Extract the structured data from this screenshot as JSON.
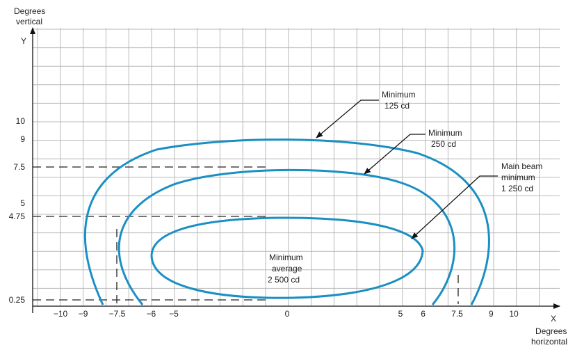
{
  "axes": {
    "y_title_line1": "Degrees",
    "y_title_line2": "vertical",
    "y_letter": "Y",
    "x_letter": "X",
    "x_title_line1": "Degrees",
    "x_title_line2": "horizontal",
    "x_ticks": [
      "−10",
      "−9",
      "−7.5",
      "−6",
      "−5",
      "0",
      "5",
      "6",
      "7.5",
      "9",
      "10"
    ],
    "x_tick_values": [
      -10,
      -9,
      -7.5,
      -6,
      -5,
      0,
      5,
      6,
      7.5,
      9,
      10
    ],
    "y_ticks": [
      "10",
      "9",
      "7.5",
      "5",
      "4.75",
      "0.25"
    ],
    "y_tick_values": [
      10,
      9,
      7.5,
      5,
      4.75,
      0.25
    ]
  },
  "curves": [
    {
      "name": "minimum-125-cd",
      "x_range": [
        -9,
        9
      ],
      "y_top": 9,
      "y_bottom": 0.25,
      "color": "#1a8fc4"
    },
    {
      "name": "minimum-250-cd",
      "x_range": [
        -7.5,
        7.5
      ],
      "y_top": 7.5,
      "y_bottom": 0.25,
      "color": "#1a8fc4"
    },
    {
      "name": "main-beam-1250-cd",
      "x_range": [
        -6,
        6
      ],
      "y_top": 4.75,
      "y_bottom": 0.25,
      "color": "#1a8fc4"
    }
  ],
  "labels": {
    "min125_line1": "Minimum",
    "min125_line2": "125 cd",
    "min250_line1": "Minimum",
    "min250_line2": "250 cd",
    "main_line1": "Main beam",
    "main_line2": "minimum",
    "main_line3": "1 250 cd",
    "avg_line1": "Minimum",
    "avg_line2": "average",
    "avg_line3": "2 500 cd"
  }
}
